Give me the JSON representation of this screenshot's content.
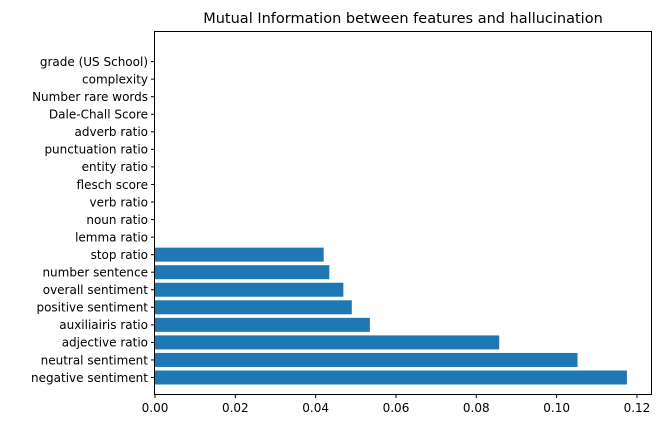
{
  "chart_data": {
    "type": "bar",
    "orientation": "horizontal",
    "title": "Mutual Information between features and hallucination",
    "xlabel": "",
    "ylabel": "",
    "xlim": [
      0,
      0.1235
    ],
    "x_ticks": [
      0,
      0.02,
      0.04,
      0.06,
      0.08,
      0.1,
      0.12
    ],
    "x_tick_labels": [
      "0.00",
      "0.02",
      "0.04",
      "0.06",
      "0.08",
      "0.10",
      "0.12"
    ],
    "categories": [
      "negative sentiment",
      "neutral sentiment",
      "adjective ratio",
      "auxiliairis ratio",
      "positive sentiment",
      "overall sentiment",
      "number sentence",
      "stop ratio",
      "lemma ratio",
      "noun ratio",
      "verb ratio",
      "flesch score",
      "entity ratio",
      "punctuation ratio",
      "adverb ratio",
      "Dale-Chall Score",
      "Number rare words",
      "complexity",
      "grade (US School)"
    ],
    "values": [
      0.1175,
      0.1052,
      0.0857,
      0.0535,
      0.049,
      0.0469,
      0.0434,
      0.042,
      0,
      0,
      0,
      0,
      0,
      0,
      0,
      0,
      0,
      0,
      0
    ],
    "bar_color": "#1f77b4",
    "grid": false,
    "legend": "none"
  }
}
